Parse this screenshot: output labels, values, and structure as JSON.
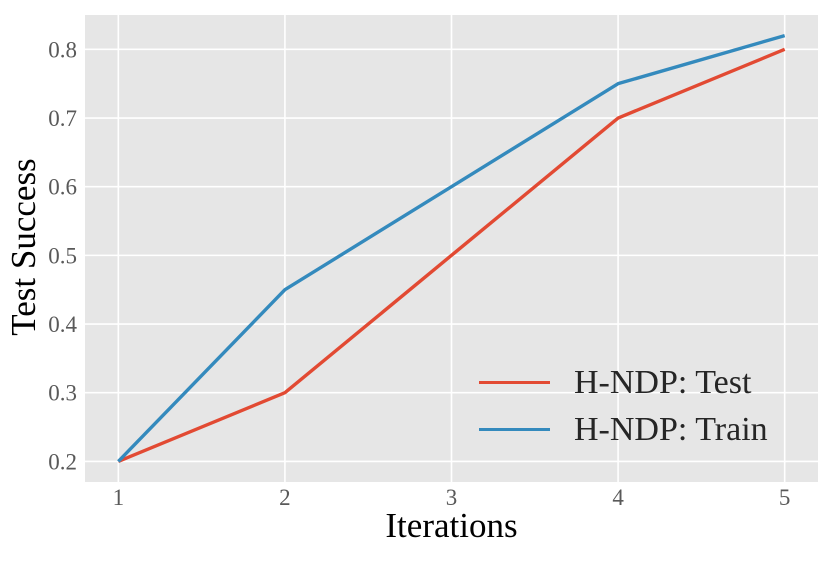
{
  "chart_data": {
    "type": "line",
    "title": "",
    "xlabel": "Iterations",
    "ylabel": "Test Success",
    "x": [
      1,
      2,
      3,
      4,
      5
    ],
    "series": [
      {
        "name": "H-NDP: Test",
        "color": "#E24A33",
        "values": [
          0.2,
          0.3,
          0.5,
          0.7,
          0.8
        ]
      },
      {
        "name": "H-NDP: Train",
        "color": "#348ABD",
        "values": [
          0.2,
          0.45,
          0.6,
          0.75,
          0.82
        ]
      }
    ],
    "xlim": [
      0.8,
      5.2
    ],
    "ylim": [
      0.17,
      0.85
    ],
    "xticks": [
      1,
      2,
      3,
      4,
      5
    ],
    "xtick_labels": [
      "1",
      "2",
      "3",
      "4",
      "5"
    ],
    "yticks": [
      0.2,
      0.3,
      0.4,
      0.5,
      0.6,
      0.7,
      0.8
    ],
    "ytick_labels": [
      "0.2",
      "0.3",
      "0.4",
      "0.5",
      "0.6",
      "0.7",
      "0.8"
    ],
    "grid": true,
    "legend_position": "lower right",
    "legend_frame": false,
    "colors": {
      "plot_background": "#E6E6E6",
      "gridline": "#FFFFFF",
      "tick_label": "#595959",
      "axis_label": "#000000",
      "legend_text": "#262626",
      "page_background": "#FFFFFF"
    }
  }
}
